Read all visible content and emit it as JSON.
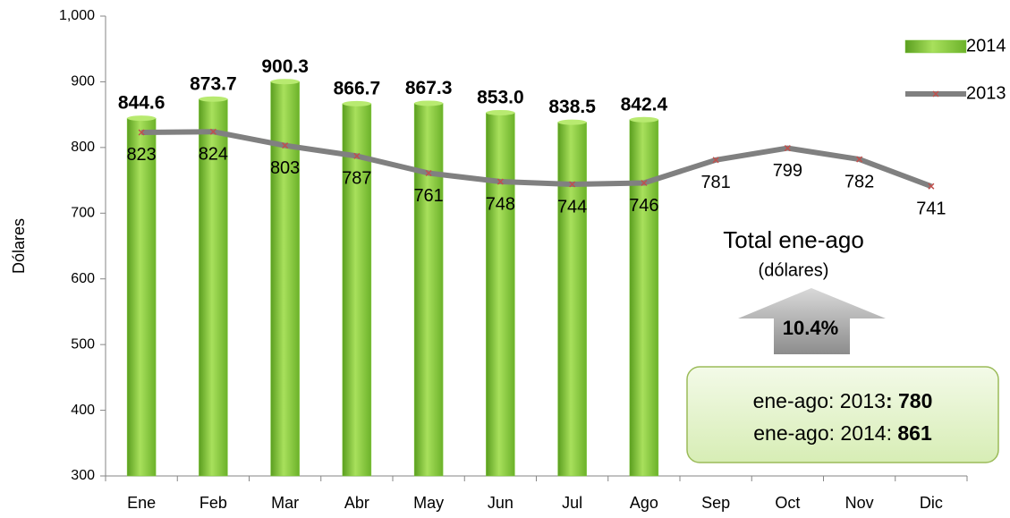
{
  "chart_data": {
    "type": "bar",
    "y_label": "Dólares",
    "categories": [
      "Ene",
      "Feb",
      "Mar",
      "Abr",
      "May",
      "Jun",
      "Jul",
      "Ago",
      "Sep",
      "Oct",
      "Nov",
      "Dic"
    ],
    "series": [
      {
        "name": "2014",
        "type": "bar",
        "color": "#7dc63a",
        "values": [
          844.6,
          873.7,
          900.3,
          866.7,
          867.3,
          853.0,
          838.5,
          842.4,
          null,
          null,
          null,
          null
        ],
        "value_labels": [
          "844.6",
          "873.7",
          "900.3",
          "866.7",
          "867.3",
          "853.0",
          "838.5",
          "842.4",
          null,
          null,
          null,
          null
        ]
      },
      {
        "name": "2013",
        "type": "line",
        "color": "#808080",
        "marker_color": "#c0504d",
        "values": [
          823,
          824,
          803,
          787,
          761,
          748,
          744,
          746,
          781,
          799,
          782,
          741
        ]
      }
    ],
    "ylim": [
      300,
      1000
    ],
    "yticks": [
      300,
      400,
      500,
      600,
      700,
      800,
      900,
      {
        "value": 1000,
        "label": "1,000"
      }
    ],
    "legend": "top-right",
    "annotations": {
      "total_title": "Total ene-ago",
      "total_unit": "(dólares)",
      "change": "10.4%",
      "box_lines": [
        {
          "text": "ene-ago: 2013",
          "bold": ": 780"
        },
        {
          "text": "ene-ago: 2014: ",
          "bold": "861"
        }
      ]
    }
  }
}
